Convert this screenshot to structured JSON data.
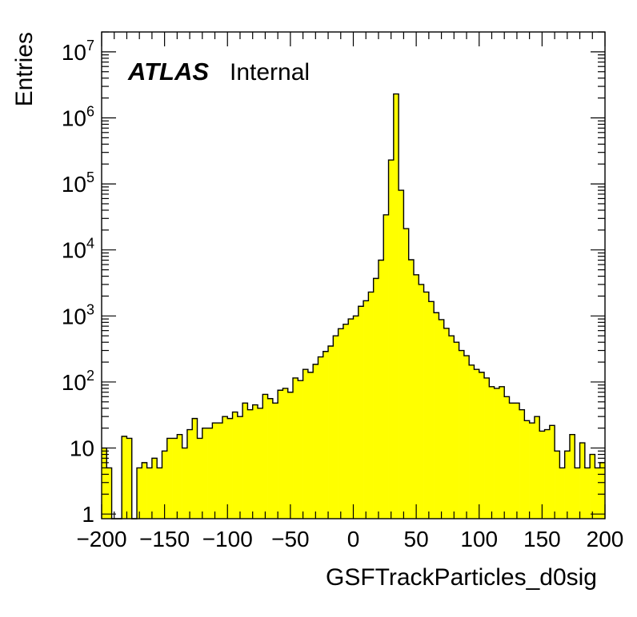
{
  "chart_data": {
    "type": "bar",
    "style": "histogram",
    "fill_color": "#ffff00",
    "edge_color": "#000000",
    "title": "",
    "xlabel": "GSFTrackParticles_d0sig",
    "ylabel": "Entries",
    "xlim": [
      -200,
      200
    ],
    "ylim": [
      0.85,
      20000000
    ],
    "yscale": "log",
    "x_ticks": [
      "−200",
      "−150",
      "−100",
      "−50",
      "0",
      "50",
      "100",
      "150",
      "200"
    ],
    "y_ticks": [
      {
        "base": "1",
        "exp": ""
      },
      {
        "base": "10",
        "exp": ""
      },
      {
        "base": "10",
        "exp": "2"
      },
      {
        "base": "10",
        "exp": "3"
      },
      {
        "base": "10",
        "exp": "4"
      },
      {
        "base": "10",
        "exp": "5"
      },
      {
        "base": "10",
        "exp": "6"
      },
      {
        "base": "10",
        "exp": "7"
      }
    ],
    "bin_width": 4,
    "bin_start": -200,
    "values": [
      10,
      5,
      0,
      0,
      15,
      14,
      0,
      5,
      6,
      5,
      7,
      5,
      9,
      14,
      14,
      16,
      10,
      19,
      28,
      14,
      20,
      20,
      24,
      24,
      30,
      28,
      35,
      30,
      48,
      38,
      45,
      40,
      65,
      56,
      48,
      75,
      80,
      70,
      115,
      105,
      155,
      140,
      185,
      240,
      290,
      350,
      500,
      640,
      750,
      900,
      1000,
      1400,
      1700,
      2300,
      3700,
      7000,
      34000,
      230000,
      2300000,
      80000,
      21000,
      7100,
      4200,
      3000,
      2300,
      1650,
      1120,
      880,
      650,
      500,
      400,
      300,
      250,
      180,
      155,
      140,
      115,
      85,
      80,
      85,
      60,
      48,
      48,
      38,
      26,
      24,
      30,
      18,
      19,
      22,
      9,
      5,
      9,
      16,
      5,
      12,
      5,
      8,
      5,
      6
    ],
    "annotations": {
      "brand": "ATLAS",
      "status": "Internal"
    },
    "grid": false,
    "legend": "none"
  }
}
